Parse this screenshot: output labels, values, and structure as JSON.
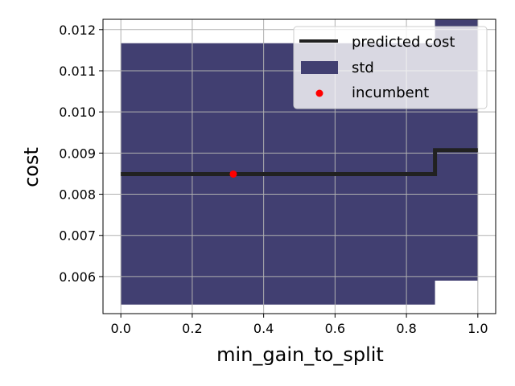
{
  "chart_data": {
    "type": "line",
    "title": "",
    "xlabel": "min_gain_to_split",
    "ylabel": "cost",
    "xlim": [
      -0.05,
      1.05
    ],
    "ylim": [
      0.0051,
      0.01225
    ],
    "grid": true,
    "x_ticks": [
      "0.0",
      "0.2",
      "0.4",
      "0.6",
      "0.8",
      "1.0"
    ],
    "x_tick_values": [
      0.0,
      0.2,
      0.4,
      0.6,
      0.8,
      1.0
    ],
    "y_ticks": [
      "0.006",
      "0.007",
      "0.008",
      "0.009",
      "0.010",
      "0.011",
      "0.012"
    ],
    "y_tick_values": [
      0.006,
      0.007,
      0.008,
      0.009,
      0.01,
      0.011,
      0.012
    ],
    "legend_position": "top-right",
    "legend": [
      "predicted cost",
      "std",
      "incumbent"
    ],
    "series": [
      {
        "name": "predicted cost",
        "kind": "step-line",
        "color": "#212121",
        "x": [
          0.0,
          0.88,
          0.88,
          1.0
        ],
        "y": [
          0.00849,
          0.00849,
          0.00907,
          0.00907
        ]
      },
      {
        "name": "std",
        "kind": "band",
        "color": "#413f71",
        "x": [
          0.0,
          0.88,
          0.88,
          1.0
        ],
        "upper": [
          0.01167,
          0.01167,
          0.01225,
          0.01225
        ],
        "lower": [
          0.00532,
          0.00532,
          0.0059,
          0.0059
        ]
      },
      {
        "name": "incumbent",
        "kind": "scatter",
        "color": "#ff0000",
        "x": [
          0.315
        ],
        "y": [
          0.00849
        ]
      }
    ]
  }
}
